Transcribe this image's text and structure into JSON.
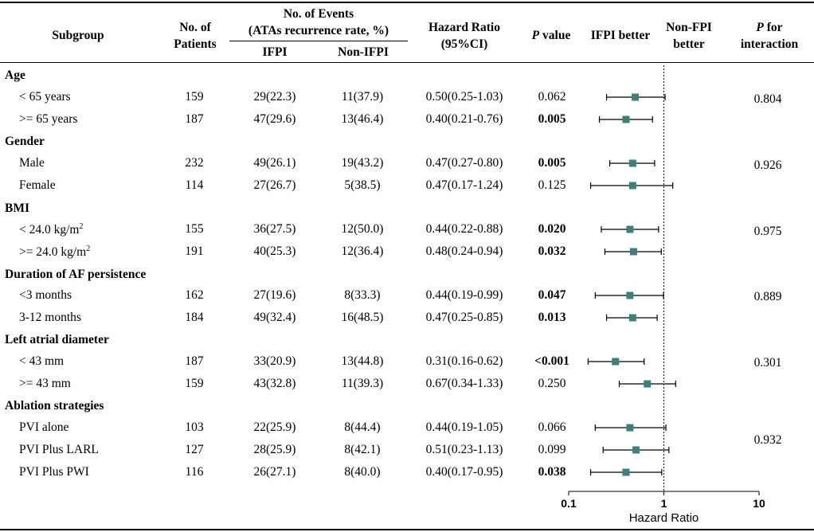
{
  "headers": {
    "subgroup": "Subgroup",
    "patients_l1": "No. of",
    "patients_l2": "Patients",
    "events_l1": "No. of Events",
    "events_l2": "(ATAs recurrence rate, %)",
    "ifpi": "IFPI",
    "non_ifpi": "Non-IFPI",
    "hr_l1": "Hazard Ratio",
    "hr_l2": "(95%CI)",
    "p_italic": "P",
    "p_rest": " value",
    "ifpi_better": "IFPI better",
    "nonfpi_l1": "Non-FPI",
    "nonfpi_l2": "better",
    "pint_italic": "P",
    "pint_rest": " for",
    "pint_l2": "interaction"
  },
  "groups": [
    {
      "label": "Age",
      "interaction": "0.804"
    },
    {
      "label": "Gender",
      "interaction": "0.926"
    },
    {
      "label": "BMI",
      "interaction": "0.975"
    },
    {
      "label": "Duration of AF persistence",
      "interaction": "0.889"
    },
    {
      "label": "Left atrial diameter",
      "interaction": "0.301"
    },
    {
      "label": "Ablation strategies",
      "interaction": "0.932"
    }
  ],
  "rows": [
    {
      "label": "< 65 years",
      "patients": "159",
      "ifpi": "29(22.3)",
      "non_ifpi": "11(37.9)",
      "hr_text": "0.50(0.25-1.03)",
      "p": "0.062"
    },
    {
      "label": ">= 65 years",
      "patients": "187",
      "ifpi": "47(29.6)",
      "non_ifpi": "13(46.4)",
      "hr_text": "0.40(0.21-0.76)",
      "p": "0.005"
    },
    {
      "label": "Male",
      "patients": "232",
      "ifpi": "49(26.1)",
      "non_ifpi": "19(43.2)",
      "hr_text": "0.47(0.27-0.80)",
      "p": "0.005"
    },
    {
      "label": "Female",
      "patients": "114",
      "ifpi": "27(26.7)",
      "non_ifpi": "5(38.5)",
      "hr_text": "0.47(0.17-1.24)",
      "p": "0.125"
    },
    {
      "label": "< 24.0 kg/m",
      "sup": "2",
      "patients": "155",
      "ifpi": "36(27.5)",
      "non_ifpi": "12(50.0)",
      "hr_text": "0.44(0.22-0.88)",
      "p": "0.020"
    },
    {
      "label": ">= 24.0 kg/m",
      "sup": "2",
      "patients": "191",
      "ifpi": "40(25.3)",
      "non_ifpi": "12(36.4)",
      "hr_text": "0.48(0.24-0.94)",
      "p": "0.032"
    },
    {
      "label": "<3 months",
      "patients": "162",
      "ifpi": "27(19.6)",
      "non_ifpi": "8(33.3)",
      "hr_text": "0.44(0.19-0.99)",
      "p": "0.047"
    },
    {
      "label": "3-12 months",
      "patients": "184",
      "ifpi": "49(32.4)",
      "non_ifpi": "16(48.5)",
      "hr_text": "0.47(0.25-0.85)",
      "p": "0.013"
    },
    {
      "label": "< 43 mm",
      "patients": "187",
      "ifpi": "33(20.9)",
      "non_ifpi": "13(44.8)",
      "hr_text": "0.31(0.16-0.62)",
      "p": "<0.001"
    },
    {
      "label": ">= 43 mm",
      "patients": "159",
      "ifpi": "43(32.8)",
      "non_ifpi": "11(39.3)",
      "hr_text": "0.67(0.34-1.33)",
      "p": "0.250"
    },
    {
      "label": "PVI alone",
      "patients": "103",
      "ifpi": "22(25.9)",
      "non_ifpi": "8(44.4)",
      "hr_text": "0.44(0.19-1.05)",
      "p": "0.066"
    },
    {
      "label": "PVI Plus LARL",
      "patients": "127",
      "ifpi": "28(25.9)",
      "non_ifpi": "8(42.1)",
      "hr_text": "0.51(0.23-1.13)",
      "p": "0.099"
    },
    {
      "label": "PVI Plus PWI",
      "patients": "116",
      "ifpi": "26(27.1)",
      "non_ifpi": "8(40.0)",
      "hr_text": "0.40(0.17-0.95)",
      "p": "0.038"
    }
  ],
  "chart_data": {
    "type": "forest",
    "xlabel": "Hazard Ratio",
    "xscale": "log",
    "xlim": [
      0.1,
      10
    ],
    "ticks": [
      "0.1",
      "1",
      "10"
    ],
    "reference": 1,
    "series": [
      {
        "name": "< 65 years",
        "hr": 0.5,
        "lo": 0.25,
        "hi": 1.03,
        "significant": false
      },
      {
        "name": ">= 65 years",
        "hr": 0.4,
        "lo": 0.21,
        "hi": 0.76,
        "significant": true
      },
      {
        "name": "Male",
        "hr": 0.47,
        "lo": 0.27,
        "hi": 0.8,
        "significant": true
      },
      {
        "name": "Female",
        "hr": 0.47,
        "lo": 0.17,
        "hi": 1.24,
        "significant": false
      },
      {
        "name": "< 24.0 kg/m2",
        "hr": 0.44,
        "lo": 0.22,
        "hi": 0.88,
        "significant": true
      },
      {
        "name": ">= 24.0 kg/m2",
        "hr": 0.48,
        "lo": 0.24,
        "hi": 0.94,
        "significant": true
      },
      {
        "name": "<3 months",
        "hr": 0.44,
        "lo": 0.19,
        "hi": 0.99,
        "significant": true
      },
      {
        "name": "3-12 months",
        "hr": 0.47,
        "lo": 0.25,
        "hi": 0.85,
        "significant": true
      },
      {
        "name": "< 43 mm",
        "hr": 0.31,
        "lo": 0.16,
        "hi": 0.62,
        "significant": true
      },
      {
        "name": ">= 43 mm",
        "hr": 0.67,
        "lo": 0.34,
        "hi": 1.33,
        "significant": false
      },
      {
        "name": "PVI alone",
        "hr": 0.44,
        "lo": 0.19,
        "hi": 1.05,
        "significant": false
      },
      {
        "name": "PVI Plus LARL",
        "hr": 0.51,
        "lo": 0.23,
        "hi": 1.13,
        "significant": false
      },
      {
        "name": "PVI Plus PWI",
        "hr": 0.4,
        "lo": 0.17,
        "hi": 0.95,
        "significant": true
      }
    ],
    "colors": {
      "marker": "#3d7f7a",
      "line": "#000000"
    }
  }
}
